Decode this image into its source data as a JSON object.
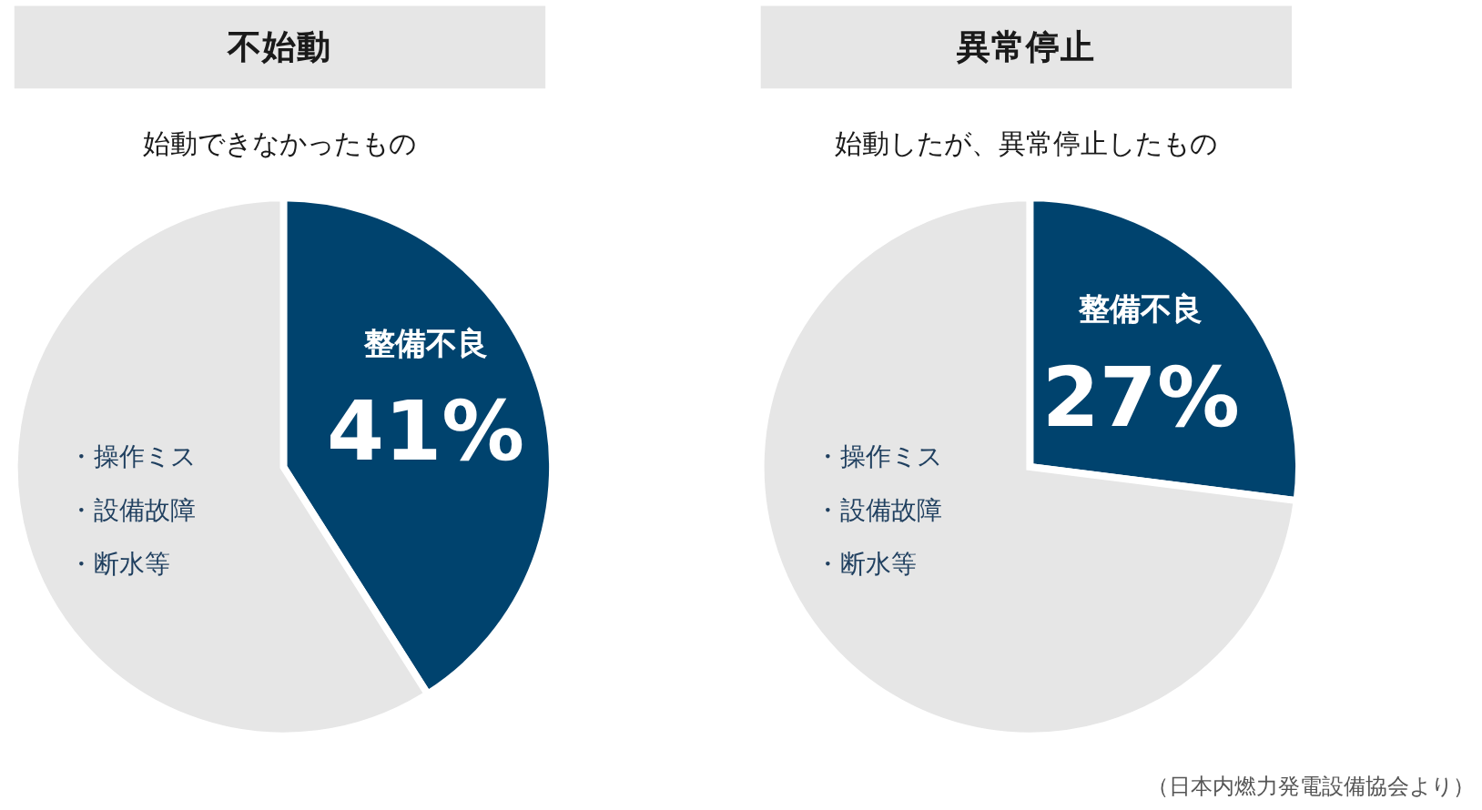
{
  "chart_data": [
    {
      "type": "pie",
      "title": "不始動",
      "subtitle": "始動できなかったもの",
      "categories": [
        "整備不良",
        "・操作ミス・設備故障・断水等"
      ],
      "values": [
        41,
        59
      ],
      "colors": [
        "#00436e",
        "#e6e6e6"
      ],
      "value_labels": [
        "41%",
        null
      ]
    },
    {
      "type": "pie",
      "title": "異常停止",
      "subtitle": "始動したが、異常停止したもの",
      "categories": [
        "整備不良",
        "・操作ミス・設備故障・断水等"
      ],
      "values": [
        27,
        73
      ],
      "colors": [
        "#00436e",
        "#e6e6e6"
      ],
      "value_labels": [
        "27%",
        null
      ],
      "annotations": [
        "（日本内燃力発電設備協会より）"
      ]
    }
  ]
}
